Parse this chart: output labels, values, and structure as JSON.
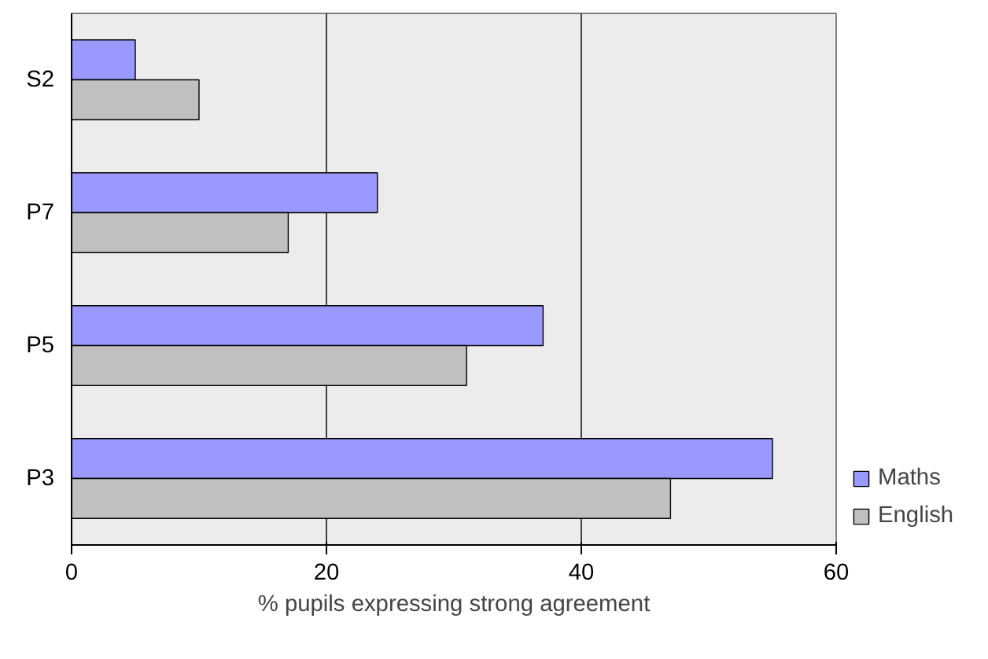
{
  "chart_data": {
    "type": "bar",
    "orientation": "horizontal",
    "xlabel": "% pupils expressing strong agreement",
    "categories": [
      "S2",
      "P7",
      "P5",
      "P3"
    ],
    "series": [
      {
        "name": "Maths",
        "color": "#9999ff",
        "values": [
          5,
          24,
          37,
          55
        ]
      },
      {
        "name": "English",
        "color": "#c0c0c0",
        "values": [
          10,
          17,
          31,
          47
        ]
      }
    ],
    "xlim": [
      0,
      60
    ],
    "xticks": [
      0,
      20,
      40,
      60
    ],
    "grid": "x",
    "legend": "right"
  }
}
